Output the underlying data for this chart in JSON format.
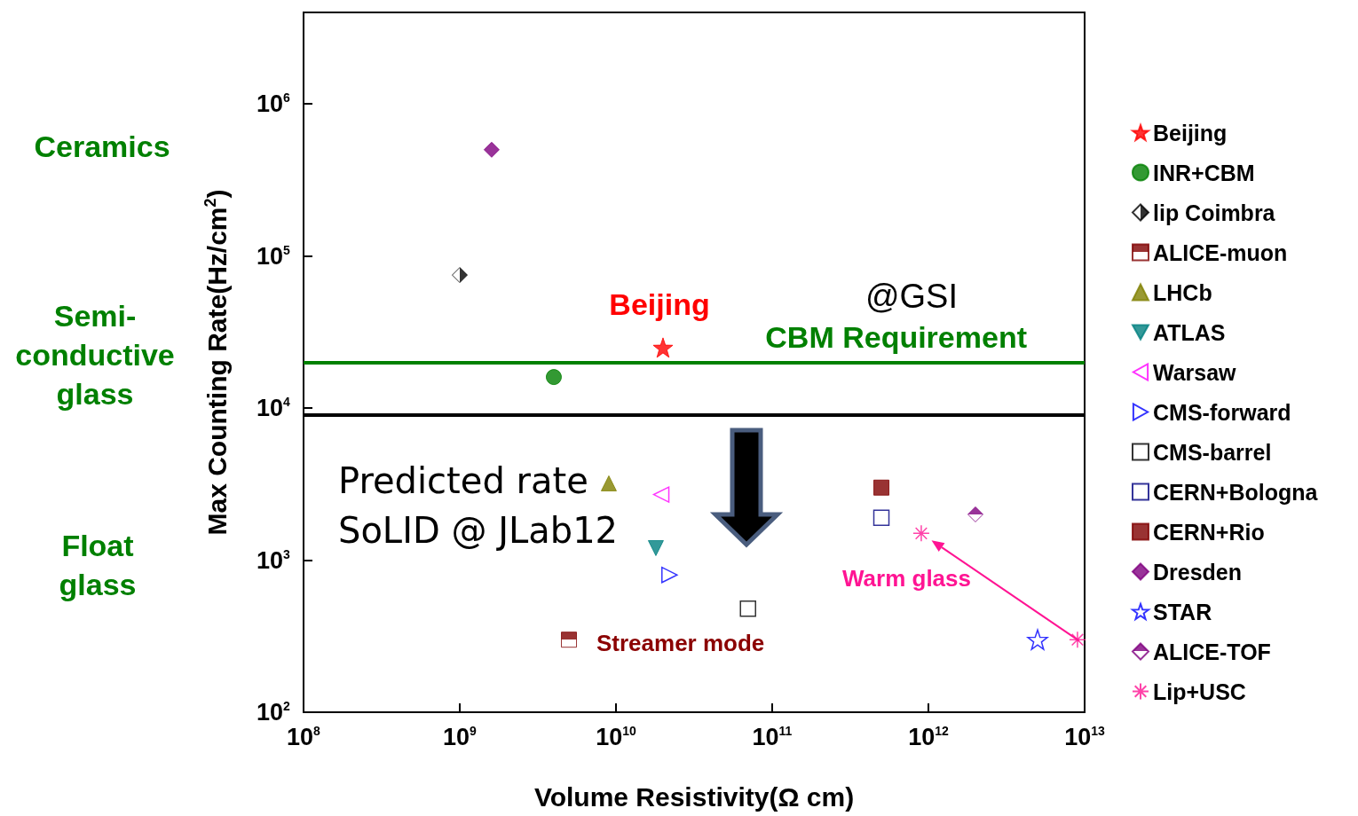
{
  "chart_data": {
    "type": "scatter",
    "xlabel": "Volume Resistivity(Ω cm)",
    "ylabel": "Max Counting Rate(Hz/cm$^{2}$)",
    "log": "xy",
    "grid": false,
    "legend": "right",
    "xlim": [
      100000000.0,
      10000000000000.0
    ],
    "ylim": [
      100,
      4000000
    ],
    "xticks": [
      {
        "value": 100000000.0,
        "label": "10$^{8}$"
      },
      {
        "value": 1000000000.0,
        "label": "10$^{9}$"
      },
      {
        "value": 10000000000.0,
        "label": "10$^{10}$"
      },
      {
        "value": 100000000000.0,
        "label": "10$^{11}$"
      },
      {
        "value": 1000000000000.0,
        "label": "10$^{12}$"
      },
      {
        "value": 10000000000000.0,
        "label": "10$^{13}$"
      }
    ],
    "yticks": [
      {
        "value": 100,
        "label": "10$^{2}$"
      },
      {
        "value": 1000,
        "label": "10$^{3}$"
      },
      {
        "value": 10000,
        "label": "10$^{4}$"
      },
      {
        "value": 100000,
        "label": "10$^{5}$"
      },
      {
        "value": 1000000,
        "label": "10$^{6}$"
      }
    ],
    "series": [
      {
        "name": "Beijing",
        "color": "#ff0000",
        "marker": "star",
        "x": [
          20000000000.0
        ],
        "values": [
          25000
        ]
      },
      {
        "name": "INR+CBM",
        "color": "#008000",
        "marker": "circle",
        "x": [
          4000000000.0
        ],
        "values": [
          16000
        ]
      },
      {
        "name": "lip Coimbra",
        "color": "#000000",
        "marker": "diamond-half-right",
        "x": [
          1000000000.0
        ],
        "values": [
          75000
        ]
      },
      {
        "name": "ALICE-muon",
        "color": "#800000",
        "marker": "square-half-top",
        "x": [
          5000000000.0
        ],
        "values": [
          300
        ]
      },
      {
        "name": "LHCb",
        "color": "#808000",
        "marker": "triangle",
        "x": [
          9000000000.0
        ],
        "values": [
          3200
        ]
      },
      {
        "name": "ATLAS",
        "color": "#008080",
        "marker": "triangle-down",
        "x": [
          18000000000.0
        ],
        "values": [
          1200
        ]
      },
      {
        "name": "Warsaw",
        "color": "#ff00ff",
        "marker": "triangle-left-open",
        "x": [
          19500000000.0
        ],
        "values": [
          2700
        ]
      },
      {
        "name": "CMS-forward",
        "color": "#0000ff",
        "marker": "triangle-right-open",
        "x": [
          22000000000.0
        ],
        "values": [
          800
        ]
      },
      {
        "name": "CMS-barrel",
        "color": "#000000",
        "marker": "square-open",
        "x": [
          70000000000.0
        ],
        "values": [
          480
        ]
      },
      {
        "name": "CERN+Bologna",
        "color": "#000080",
        "marker": "square-open",
        "x": [
          500000000000.0
        ],
        "values": [
          1900
        ]
      },
      {
        "name": "CERN+Rio",
        "color": "#800000",
        "marker": "square",
        "x": [
          500000000000.0
        ],
        "values": [
          3000
        ]
      },
      {
        "name": "Dresden",
        "color": "#800080",
        "marker": "diamond",
        "x": [
          1600000000.0
        ],
        "values": [
          500000
        ]
      },
      {
        "name": "STAR",
        "color": "#0000ff",
        "marker": "star-open",
        "x": [
          5000000000000.0
        ],
        "values": [
          300
        ]
      },
      {
        "name": "ALICE-TOF",
        "color": "#800080",
        "marker": "diamond-half-top",
        "x": [
          2000000000000.0
        ],
        "values": [
          2000
        ]
      },
      {
        "name": "Lip+USC",
        "color": "#ff1493",
        "marker": "cross",
        "x": [
          900000000000.0,
          9000000000000.0
        ],
        "values": [
          1500,
          300
        ]
      }
    ],
    "ref_lines": [
      {
        "axis": "y",
        "value": 20000,
        "label": "CBM Requirement",
        "color": "#008000"
      },
      {
        "axis": "y",
        "value": 9000,
        "color": "#000000"
      }
    ],
    "annotations": [
      "Ceramics",
      "Semi-conductive glass",
      "Float glass",
      "Beijing",
      "@GSI",
      "Predicted rate",
      "SoLID @ JLab12",
      "Streamer mode",
      "Warm glass"
    ]
  }
}
